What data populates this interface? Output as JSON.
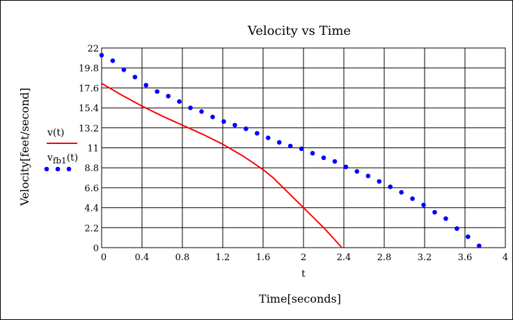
{
  "chart_data": {
    "type": "scatter",
    "title": "Velocity vs Time",
    "xlabel": "Time[seconds]",
    "x_var_label": "t",
    "ylabel": "Velocity[feet/second]",
    "xlim": [
      0,
      4
    ],
    "ylim": [
      0,
      22
    ],
    "x_ticks": [
      0,
      0.4,
      0.8,
      1.2,
      1.6,
      2,
      2.4,
      2.8,
      3.2,
      3.6,
      4
    ],
    "x_tick_labels": [
      "0",
      "0.4",
      "0.8",
      "1.2",
      "1.6",
      "2",
      "2.4",
      "2.8",
      "3.2",
      "3.6",
      "4"
    ],
    "y_ticks": [
      0,
      2.2,
      4.4,
      6.6,
      8.8,
      11,
      13.2,
      15.4,
      17.6,
      19.8,
      22
    ],
    "y_tick_labels": [
      "0",
      "2.2",
      "4.4",
      "6.6",
      "8.8",
      "11",
      "13.2",
      "15.4",
      "17.6",
      "19.8",
      "22"
    ],
    "grid": true,
    "legend_position": "left",
    "series": [
      {
        "name": "v(t)",
        "legend_main": "v(t)",
        "legend_sub": "",
        "style": "line",
        "color": "#ff0000",
        "x": [
          0,
          0.2,
          0.4,
          0.6,
          0.8,
          1.0,
          1.2,
          1.4,
          1.6,
          1.7,
          1.8,
          1.9,
          2.0,
          2.1,
          2.2,
          2.3,
          2.38
        ],
        "y": [
          18.1,
          16.8,
          15.6,
          14.5,
          13.5,
          12.5,
          11.4,
          10.1,
          8.6,
          7.7,
          6.6,
          5.5,
          4.4,
          3.3,
          2.2,
          1.0,
          0
        ]
      },
      {
        "name": "v_fb1(t)",
        "legend_main": "v",
        "legend_sub": "fb1",
        "legend_suffix": "(t)",
        "style": "dots",
        "color": "#0000ff",
        "x": [
          0,
          0.11,
          0.22,
          0.33,
          0.44,
          0.55,
          0.66,
          0.77,
          0.88,
          0.99,
          1.1,
          1.21,
          1.32,
          1.43,
          1.54,
          1.65,
          1.76,
          1.87,
          1.98,
          2.09,
          2.2,
          2.31,
          2.42,
          2.53,
          2.64,
          2.75,
          2.86,
          2.97,
          3.08,
          3.19,
          3.3,
          3.41,
          3.52,
          3.63,
          3.74
        ],
        "y": [
          21.2,
          20.6,
          19.6,
          18.8,
          17.9,
          17.2,
          16.7,
          16.1,
          15.4,
          15.0,
          14.4,
          13.9,
          13.5,
          13.1,
          12.6,
          12.1,
          11.6,
          11.2,
          10.9,
          10.4,
          9.9,
          9.5,
          8.9,
          8.4,
          7.9,
          7.3,
          6.7,
          6.1,
          5.4,
          4.7,
          3.9,
          3.2,
          2.1,
          1.2,
          0.2
        ]
      }
    ]
  }
}
